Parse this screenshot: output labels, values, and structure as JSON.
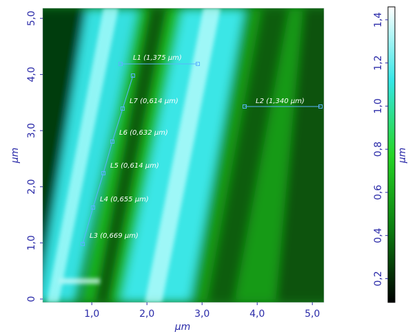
{
  "chart_data": {
    "type": "heatmap",
    "x_label": "µm",
    "y_label": "µm",
    "colorbar_label": "µm",
    "xlim": [
      0.11,
      5.21
    ],
    "xticks": [
      {
        "value": 1,
        "label": "1,0"
      },
      {
        "value": 2,
        "label": "2,0"
      },
      {
        "value": 3,
        "label": "3,0"
      },
      {
        "value": 4,
        "label": "4,0"
      },
      {
        "value": 5,
        "label": "5,0"
      }
    ],
    "ylim": [
      -0.06,
      5.18
    ],
    "yticks": [
      0,
      {
        "value": 1,
        "label": "1,0"
      },
      {
        "value": 2,
        "label": "2,0"
      },
      {
        "value": 3,
        "label": "3,0"
      },
      {
        "value": 4,
        "label": "4,0"
      },
      {
        "value": 5,
        "label": "5,0"
      }
    ],
    "colorbar": {
      "clim": [
        0.09,
        1.46
      ],
      "ticks": [
        {
          "value": 0.2,
          "label": "0,2"
        },
        {
          "value": 0.4,
          "label": "0,4"
        },
        {
          "value": 0.6,
          "label": "0,6"
        },
        {
          "value": 0.8,
          "label": "0,8"
        },
        {
          "value": 1,
          "label": "1,0"
        },
        {
          "value": 1.2,
          "label": "1,2"
        },
        {
          "value": 1.4,
          "label": "1,4"
        }
      ],
      "colors": [
        "#000000",
        "#0b7d10",
        "#26d626",
        "#35e6e6",
        "#ffffff"
      ]
    },
    "annotations": [
      "L1 (1,375 µm)",
      "L2 (1,340 µm)",
      "L3 (0,669 µm)",
      "L4 (0,655 µm)",
      "L5 (0,614 µm)",
      "L6 (0,632 µm)",
      "L7 (0,614 µm)"
    ]
  }
}
